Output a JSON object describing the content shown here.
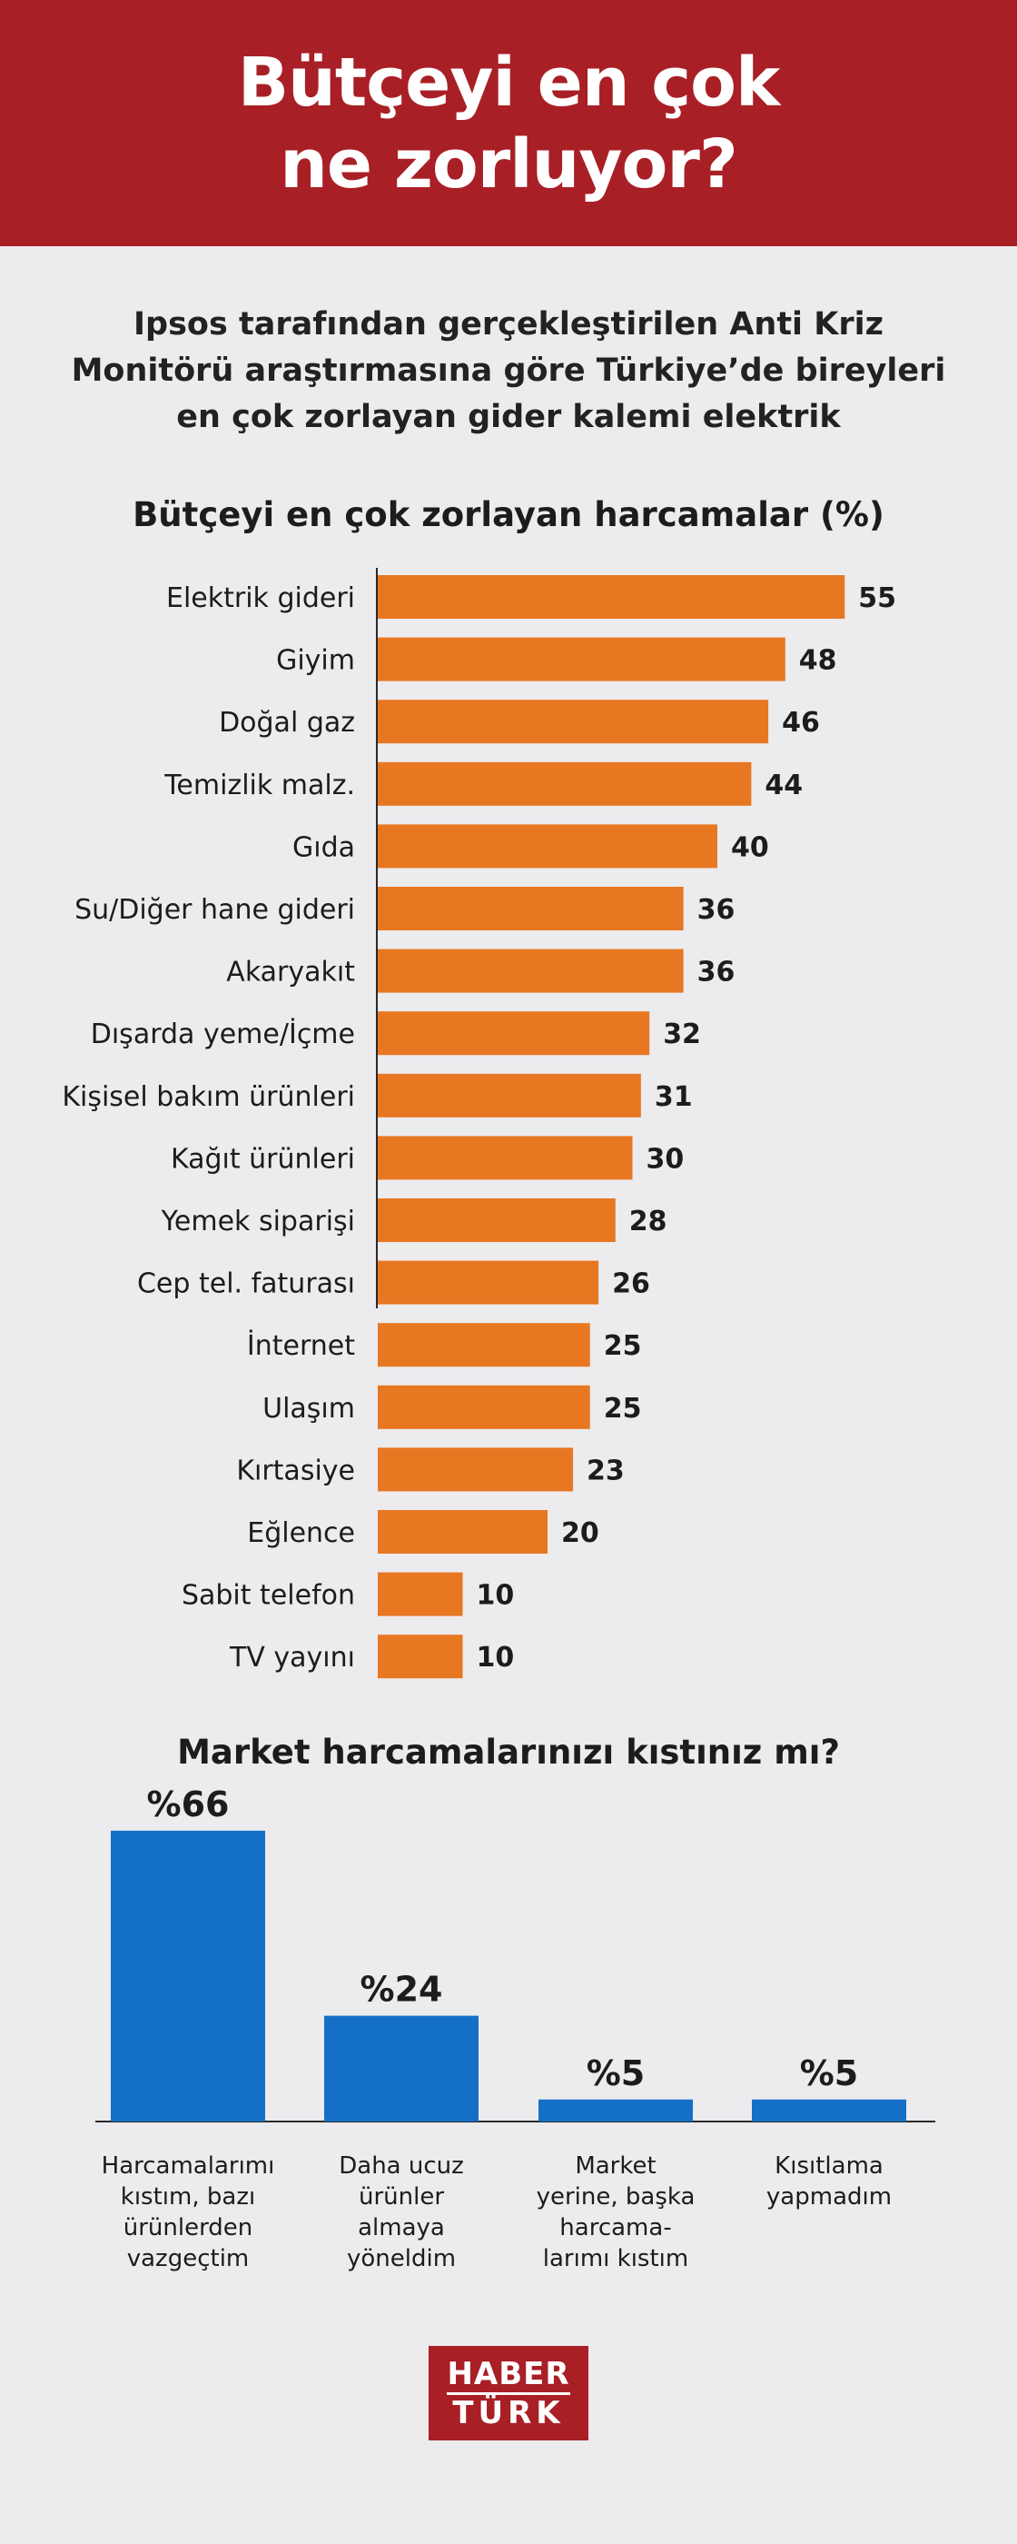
{
  "header": {
    "title_line1": "Bütçeyi en çok",
    "title_line2": "ne zorluyor?"
  },
  "subtitle": {
    "line1": "Ipsos tarafından gerçekleştirilen Anti Kriz",
    "line2": "Monitörü araştırmasına göre Türkiye’de bireyleri",
    "line3": "en çok zorlayan gider kalemi elektrik"
  },
  "colors": {
    "header_bg": "#a91f26",
    "bar_orange": "#e87722",
    "bar_blue": "#1470c6",
    "background": "#ecebee"
  },
  "chart_data": [
    {
      "type": "bar",
      "orientation": "horizontal",
      "title": "Bütçeyi en çok zorlayan harcamalar (%)",
      "categories": [
        "Elektrik gideri",
        "Giyim",
        "Doğal gaz",
        "Temizlik malz.",
        "Gıda",
        "Su/Diğer hane gideri",
        "Akaryakıt",
        "Dışarda yeme/İçme",
        "Kişisel bakım ürünleri",
        "Kağıt ürünleri",
        "Yemek siparişi",
        "Cep tel. faturası",
        "İnternet",
        "Ulaşım",
        "Kırtasiye",
        "Eğlence",
        "Sabit telefon",
        "TV yayını"
      ],
      "values": [
        55,
        48,
        46,
        44,
        40,
        36,
        36,
        32,
        31,
        30,
        28,
        26,
        25,
        25,
        23,
        20,
        10,
        10
      ],
      "value_labels": [
        "55",
        "48",
        "46",
        "44",
        "40",
        "36",
        "36",
        "32",
        "31",
        "30",
        "28",
        "26",
        "25",
        "25",
        "23",
        "20",
        "10",
        "10"
      ],
      "color": "#e87722"
    },
    {
      "type": "bar",
      "orientation": "vertical",
      "title": "Market harcamalarınızı kıstınız mı?",
      "categories": [
        [
          "Harcamalarımı",
          "kıstım, bazı",
          "ürünlerden",
          "vazgeçtim"
        ],
        [
          "Daha ucuz",
          "ürünler",
          "almaya",
          "yöneldim"
        ],
        [
          "Market",
          "yerine, başka",
          "harcama-",
          "larımı kıstım"
        ],
        [
          "Kısıtlama",
          "yapmadım"
        ]
      ],
      "values": [
        66,
        24,
        5,
        5
      ],
      "value_labels": [
        "%66",
        "%24",
        "%5",
        "%5"
      ],
      "color": "#1470c6"
    }
  ],
  "logo": {
    "line1": "HABER",
    "line2": "TÜRK"
  }
}
